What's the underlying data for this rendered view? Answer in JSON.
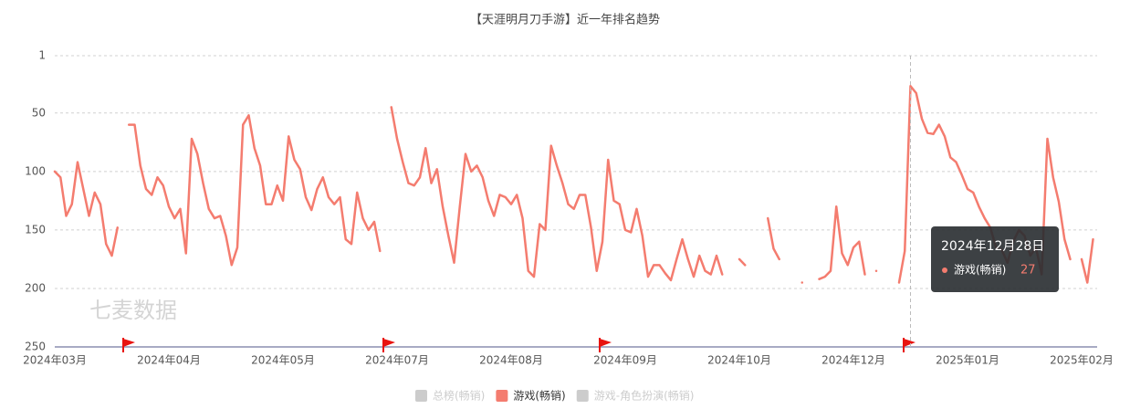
{
  "chart_data": {
    "type": "line",
    "title": "【天涯明月刀手游】近一年排名趋势",
    "watermark": "七麦数据",
    "categories": [
      "2024年03月",
      null,
      null,
      null,
      null,
      null,
      null,
      null,
      null,
      null,
      null,
      null,
      null,
      null,
      null,
      null,
      null,
      null,
      null,
      null,
      "2024年04月",
      null,
      null,
      null,
      null,
      null,
      null,
      null,
      null,
      null,
      null,
      null,
      null,
      null,
      null,
      null,
      null,
      null,
      null,
      null,
      "2024年05月",
      null,
      null,
      null,
      null,
      null,
      null,
      null,
      null,
      null,
      null,
      null,
      null,
      null,
      null,
      null,
      null,
      null,
      null,
      null,
      "2024年07月",
      null,
      null,
      null,
      null,
      null,
      null,
      null,
      null,
      null,
      null,
      null,
      null,
      null,
      null,
      null,
      null,
      null,
      null,
      null,
      "2024年08月",
      null,
      null,
      null,
      null,
      null,
      null,
      null,
      null,
      null,
      null,
      null,
      null,
      null,
      null,
      null,
      null,
      null,
      null,
      null,
      "2024年09月",
      null,
      null,
      null,
      null,
      null,
      null,
      null,
      null,
      null,
      null,
      null,
      null,
      null,
      null,
      null,
      null,
      null,
      null,
      null,
      "2024年10月",
      null,
      null,
      null,
      null,
      null,
      null,
      null,
      null,
      null,
      null,
      null,
      null,
      null,
      null,
      null,
      null,
      null,
      null,
      null,
      "2024年12月",
      null,
      null,
      null,
      null,
      null,
      null,
      null,
      null,
      null,
      null,
      null,
      null,
      null,
      null,
      null,
      null,
      null,
      null,
      null,
      "2025年01月",
      null,
      null,
      null,
      null,
      null,
      null,
      null,
      null,
      null,
      null,
      null,
      null,
      null,
      null,
      null,
      null,
      null,
      null,
      null,
      "2025年02月",
      null,
      null
    ],
    "series": [
      {
        "name": "游戏(畅销)",
        "color": "#f47c6f",
        "values": [
          100,
          105,
          138,
          128,
          92,
          115,
          138,
          118,
          128,
          162,
          172,
          148,
          null,
          60,
          60,
          95,
          115,
          120,
          105,
          112,
          130,
          140,
          132,
          170,
          72,
          85,
          110,
          132,
          140,
          138,
          155,
          180,
          165,
          60,
          52,
          80,
          95,
          128,
          128,
          112,
          125,
          70,
          90,
          98,
          122,
          133,
          115,
          105,
          122,
          128,
          122,
          158,
          162,
          118,
          140,
          150,
          143,
          168,
          null,
          45,
          72,
          92,
          110,
          112,
          105,
          80,
          110,
          98,
          130,
          155,
          178,
          130,
          85,
          100,
          95,
          105,
          125,
          138,
          120,
          122,
          128,
          120,
          140,
          185,
          190,
          145,
          150,
          78,
          95,
          110,
          128,
          132,
          120,
          120,
          148,
          185,
          160,
          90,
          125,
          128,
          150,
          152,
          132,
          155,
          190,
          180,
          180,
          187,
          193,
          175,
          158,
          175,
          190,
          172,
          185,
          188,
          172,
          188,
          null,
          null,
          175,
          180,
          null,
          null,
          null,
          140,
          166,
          175,
          null,
          null,
          null,
          195,
          null,
          null,
          192,
          190,
          185,
          130,
          170,
          180,
          165,
          160,
          188,
          null,
          185,
          null,
          null,
          null,
          195,
          168,
          27,
          33,
          55,
          67,
          68,
          60,
          70,
          88,
          92,
          103,
          115,
          118,
          130,
          140,
          148,
          165,
          167,
          178,
          160,
          150,
          155,
          172,
          165,
          188,
          72,
          105,
          126,
          158,
          175,
          null,
          175,
          195,
          158
        ]
      }
    ],
    "ylim": [
      1,
      250
    ],
    "y_inverted": true,
    "yticks": [
      1,
      50,
      100,
      150,
      200,
      250
    ],
    "grid": true,
    "legend": [
      {
        "name": "总榜(畅销)",
        "color": "#cccccc",
        "active": false
      },
      {
        "name": "游戏(畅销)",
        "color": "#f47c6f",
        "active": true
      },
      {
        "name": "游戏-角色扮演(畅销)",
        "color": "#cccccc",
        "active": false
      }
    ],
    "tooltip": {
      "title": "2024年12月28日"
    }
  }
}
